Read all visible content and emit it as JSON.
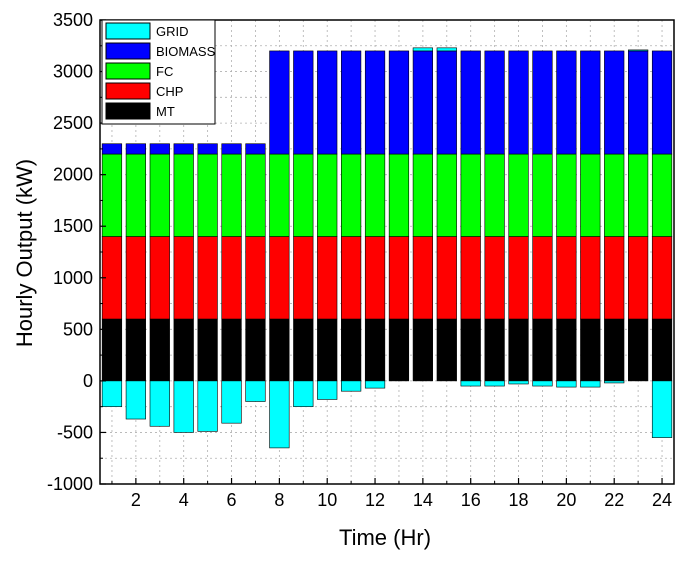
{
  "chart_data": {
    "type": "bar",
    "stacked": true,
    "title": "",
    "xlabel": "Time (Hr)",
    "ylabel": "Hourly Output (kW)",
    "xlim": [
      0.5,
      24.5
    ],
    "ylim": [
      -1000,
      3500
    ],
    "x_ticks": [
      2,
      4,
      6,
      8,
      10,
      12,
      14,
      16,
      18,
      20,
      22,
      24
    ],
    "x_tick_labels": [
      "2",
      "4",
      "6",
      "8",
      "10",
      "12",
      "14",
      "16",
      "18",
      "20",
      "22",
      "24"
    ],
    "y_ticks": [
      -1000,
      -500,
      0,
      500,
      1000,
      1500,
      2000,
      2500,
      3000,
      3500
    ],
    "y_tick_labels": [
      "-1000",
      "-500",
      "0",
      "500",
      "1000",
      "1500",
      "2000",
      "2500",
      "3000",
      "3500"
    ],
    "grid": true,
    "legend_position": "top-left",
    "categories": [
      1,
      2,
      3,
      4,
      5,
      6,
      7,
      8,
      9,
      10,
      11,
      12,
      13,
      14,
      15,
      16,
      17,
      18,
      19,
      20,
      21,
      22,
      23,
      24
    ],
    "series": [
      {
        "name": "MT",
        "color": "#000000",
        "values": [
          600,
          600,
          600,
          600,
          600,
          600,
          600,
          600,
          600,
          600,
          600,
          600,
          600,
          600,
          600,
          600,
          600,
          600,
          600,
          600,
          600,
          600,
          600,
          600
        ]
      },
      {
        "name": "CHP",
        "color": "#ff0000",
        "values": [
          800,
          800,
          800,
          800,
          800,
          800,
          800,
          800,
          800,
          800,
          800,
          800,
          800,
          800,
          800,
          800,
          800,
          800,
          800,
          800,
          800,
          800,
          800,
          800
        ]
      },
      {
        "name": "FC",
        "color": "#00ff00",
        "values": [
          800,
          800,
          800,
          800,
          800,
          800,
          800,
          800,
          800,
          800,
          800,
          800,
          800,
          800,
          800,
          800,
          800,
          800,
          800,
          800,
          800,
          800,
          800,
          800
        ]
      },
      {
        "name": "BIOMASS",
        "color": "#0000ff",
        "values": [
          100,
          100,
          100,
          100,
          100,
          100,
          100,
          1000,
          1000,
          1000,
          1000,
          1000,
          1000,
          1000,
          1000,
          1000,
          1000,
          1000,
          1000,
          1000,
          1000,
          1000,
          1000,
          1000
        ]
      },
      {
        "name": "GRID",
        "color": "#00ffff",
        "values": [
          -250,
          -370,
          -440,
          -500,
          -490,
          -410,
          -200,
          -650,
          -250,
          -180,
          -100,
          -70,
          0,
          30,
          30,
          -50,
          -50,
          -30,
          -50,
          -60,
          -60,
          -20,
          10,
          -550
        ]
      }
    ],
    "legend_order": [
      "GRID",
      "BIOMASS",
      "FC",
      "CHP",
      "MT"
    ]
  }
}
